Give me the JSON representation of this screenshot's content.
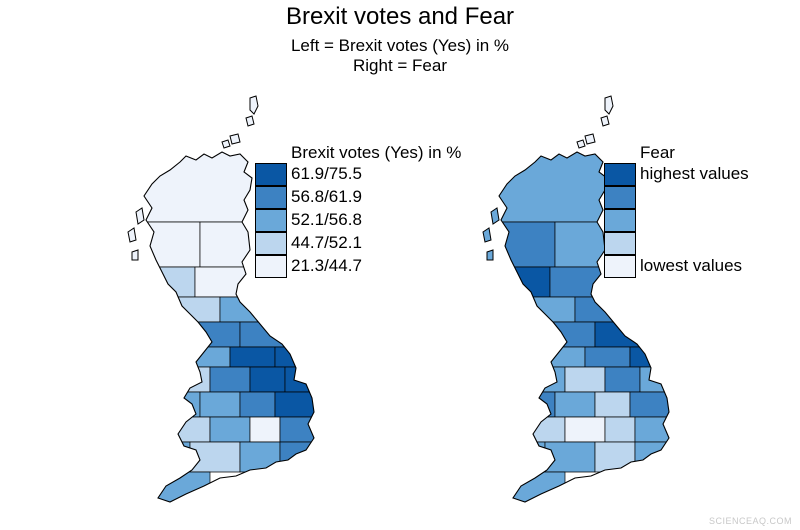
{
  "title": "Brexit votes and Fear",
  "subtitle_line1": "Left = Brexit votes (Yes) in %",
  "subtitle_line2": "Right = Fear",
  "colors": {
    "class1": "#0a57a4",
    "class2": "#3d82c2",
    "class3": "#6aa8d9",
    "class4": "#bcd6ee",
    "class5": "#eef3fb",
    "outline": "#000000"
  },
  "left_map": {
    "legend_title": "Brexit votes (Yes) in %",
    "legend_items": [
      {
        "label": "61.9/75.5",
        "color": "#0a57a4"
      },
      {
        "label": "56.8/61.9",
        "color": "#3d82c2"
      },
      {
        "label": "52.1/56.8",
        "color": "#6aa8d9"
      },
      {
        "label": "44.7/52.1",
        "color": "#bcd6ee"
      },
      {
        "label": "21.3/44.7",
        "color": "#eef3fb"
      }
    ]
  },
  "right_map": {
    "legend_title": "Fear",
    "legend_items": [
      {
        "label": "highest values",
        "color": "#0a57a4"
      },
      {
        "label": "",
        "color": "#3d82c2"
      },
      {
        "label": "",
        "color": "#6aa8d9"
      },
      {
        "label": "",
        "color": "#bcd6ee"
      },
      {
        "label": "lowest values",
        "color": "#eef3fb"
      }
    ]
  },
  "watermark": "SCIENCEAQ.COM"
}
